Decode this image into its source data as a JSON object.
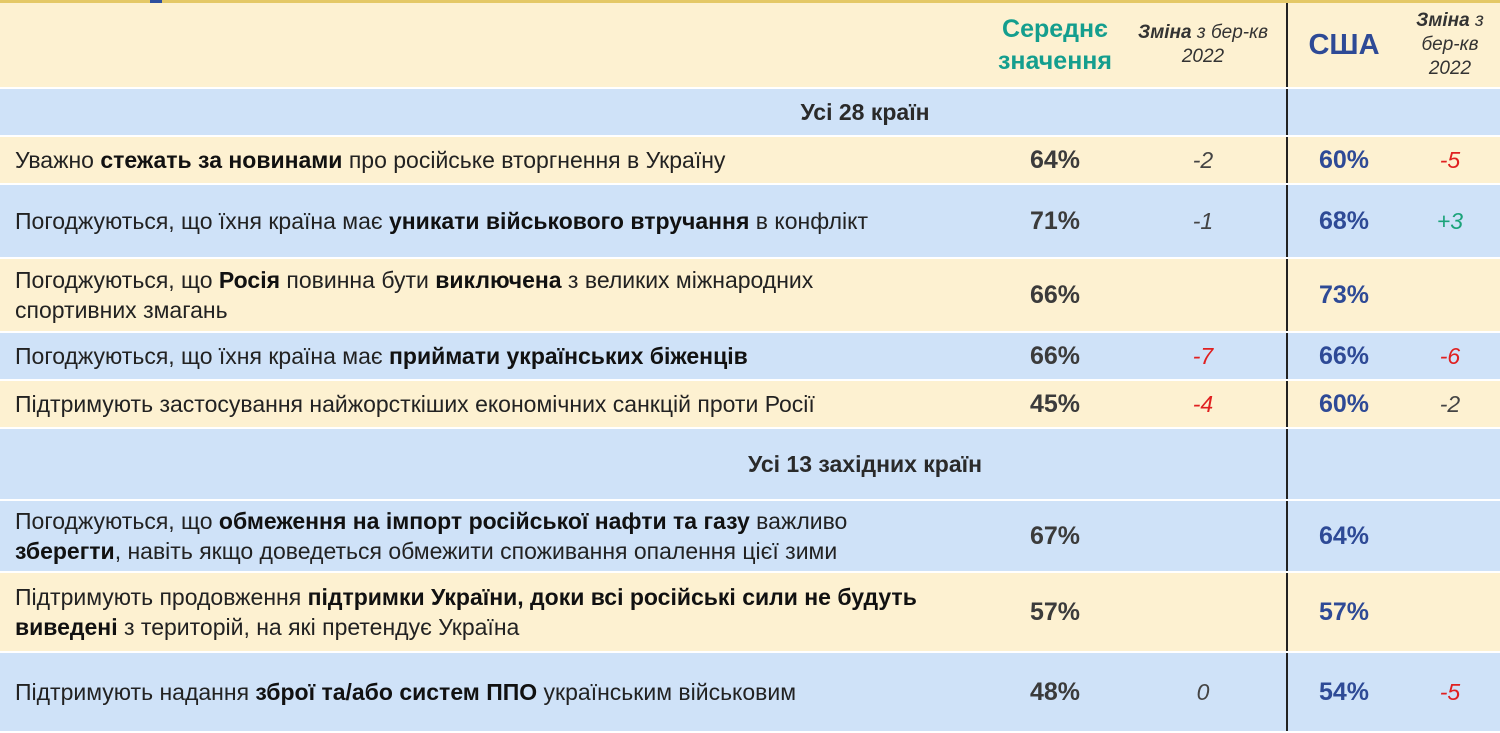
{
  "header": {
    "avg": "Середнє значення",
    "change_bold": "Зміна",
    "change_rest": " з бер-кв 2022",
    "usa": "США"
  },
  "sections": [
    {
      "title": "Усі 28 країн",
      "rows": [
        {
          "parts": [
            {
              "t": "Уважно ",
              "b": false
            },
            {
              "t": "стежать за новинами",
              "b": true
            },
            {
              "t": " про російське вторгнення в Україну",
              "b": false
            }
          ],
          "avg": "64%",
          "avg_change": "-2",
          "avg_change_color": "neutral",
          "us": "60%",
          "us_change": "-5",
          "us_change_color": "neg"
        },
        {
          "parts": [
            {
              "t": "Погоджуються, що їхня країна має ",
              "b": false
            },
            {
              "t": "уникати військового втручання",
              "b": true
            },
            {
              "t": " в конфлікт",
              "b": false
            }
          ],
          "avg": "71%",
          "avg_change": "-1",
          "avg_change_color": "neutral",
          "us": "68%",
          "us_change": "+3",
          "us_change_color": "pos"
        },
        {
          "parts": [
            {
              "t": "Погоджуються, що ",
              "b": false
            },
            {
              "t": "Росія",
              "b": true
            },
            {
              "t": " повинна бути ",
              "b": false
            },
            {
              "t": "виключена",
              "b": true
            },
            {
              "t": " з великих міжнародних спортивних змагань",
              "b": false
            }
          ],
          "avg": "66%",
          "avg_change": "",
          "avg_change_color": "neutral",
          "us": "73%",
          "us_change": "",
          "us_change_color": "neutral"
        },
        {
          "parts": [
            {
              "t": "Погоджуються, що їхня країна має ",
              "b": false
            },
            {
              "t": "приймати українських біженців",
              "b": true
            }
          ],
          "avg": "66%",
          "avg_change": "-7",
          "avg_change_color": "neg",
          "us": "66%",
          "us_change": "-6",
          "us_change_color": "neg"
        },
        {
          "parts": [
            {
              "t": "Підтримують застосування найжорсткіших економічних санкцій проти Росії",
              "b": false
            }
          ],
          "avg": "45%",
          "avg_change": "-4",
          "avg_change_color": "neg",
          "us": "60%",
          "us_change": "-2",
          "us_change_color": "neutral"
        }
      ]
    },
    {
      "title": "Усі 13 західних країн",
      "rows": [
        {
          "parts": [
            {
              "t": "Погоджуються, що ",
              "b": false
            },
            {
              "t": "обмеження на імпорт російської нафти та газу",
              "b": true
            },
            {
              "t": " важливо ",
              "b": false
            },
            {
              "t": "зберегти",
              "b": true
            },
            {
              "t": ", навіть якщо доведеться обмежити споживання опалення цієї зими",
              "b": false
            }
          ],
          "avg": "67%",
          "avg_change": "",
          "avg_change_color": "neutral",
          "us": "64%",
          "us_change": "",
          "us_change_color": "neutral"
        },
        {
          "parts": [
            {
              "t": "Підтримують продовження ",
              "b": false
            },
            {
              "t": "підтримки України, доки всі російські сили не будуть виведені",
              "b": true
            },
            {
              "t": " з територій, на які претендує Україна",
              "b": false
            }
          ],
          "avg": "57%",
          "avg_change": "",
          "avg_change_color": "neutral",
          "us": "57%",
          "us_change": "",
          "us_change_color": "neutral"
        },
        {
          "parts": [
            {
              "t": "Підтримують надання ",
              "b": false
            },
            {
              "t": "зброї та/або систем ППО",
              "b": true
            },
            {
              "t": " українським військовим",
              "b": false
            }
          ],
          "avg": "48%",
          "avg_change": "0",
          "avg_change_color": "neutral",
          "us": "54%",
          "us_change": "-5",
          "us_change_color": "neg"
        }
      ]
    }
  ]
}
